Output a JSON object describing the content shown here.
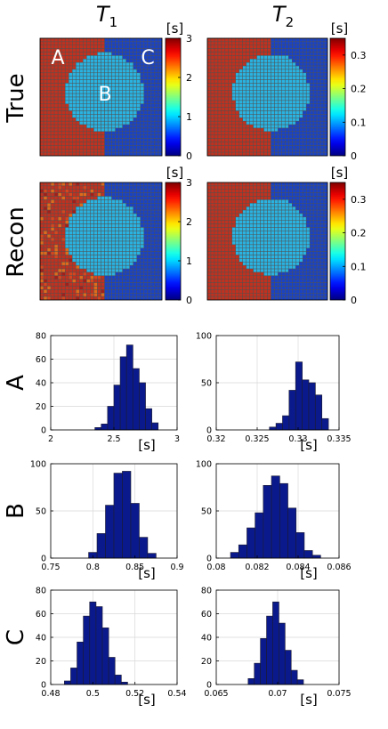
{
  "figure": {
    "column_titles": [
      "T",
      "T"
    ],
    "column_title_subscripts": [
      "1",
      "2"
    ],
    "row_labels": [
      "True",
      "Recon",
      "A",
      "B",
      "C"
    ],
    "map_region_labels": [
      "A",
      "B",
      "C"
    ],
    "colors": {
      "region_A": "#c0311f",
      "region_B": "#2ab2e0",
      "region_C": "#1a43c4",
      "bar_fill": "#0a1a8c",
      "bar_edge": "#1a1a3a",
      "grid_line": "#505050"
    },
    "colorbars": [
      {
        "unit": "[s]",
        "range": [
          0,
          3
        ],
        "ticks": [
          "0",
          "1",
          "2",
          "3"
        ]
      },
      {
        "unit": "[s]",
        "range": [
          0,
          0.35
        ],
        "ticks": [
          "0",
          "0.1",
          "0.2",
          "0.3"
        ]
      },
      {
        "unit": "[s]",
        "range": [
          0,
          3
        ],
        "ticks": [
          "0",
          "1",
          "2",
          "3"
        ]
      },
      {
        "unit": "[s]",
        "range": [
          0,
          0.35
        ],
        "ticks": [
          "0",
          "0.1",
          "0.2",
          "0.3"
        ]
      }
    ]
  },
  "chart_data": [
    {
      "type": "heatmap",
      "panel": "True T1",
      "colormap": "jet",
      "crange": [
        0,
        3
      ],
      "regions": [
        {
          "label": "A",
          "value": 2.6
        },
        {
          "label": "B",
          "value": 1.0
        },
        {
          "label": "C",
          "value": 0.5
        }
      ]
    },
    {
      "type": "heatmap",
      "panel": "True T2",
      "colormap": "jet",
      "crange": [
        0,
        0.35
      ],
      "regions": [
        {
          "label": "A",
          "value": 0.33
        },
        {
          "label": "B",
          "value": 0.083
        },
        {
          "label": "C",
          "value": 0.07
        }
      ]
    },
    {
      "type": "heatmap",
      "panel": "Recon T1",
      "colormap": "jet",
      "crange": [
        0,
        3
      ],
      "regions": [
        {
          "label": "A",
          "value": 2.6
        },
        {
          "label": "B",
          "value": 0.83
        },
        {
          "label": "C",
          "value": 0.5
        }
      ]
    },
    {
      "type": "heatmap",
      "panel": "Recon T2",
      "colormap": "jet",
      "crange": [
        0,
        0.35
      ],
      "regions": [
        {
          "label": "A",
          "value": 0.33
        },
        {
          "label": "B",
          "value": 0.083
        },
        {
          "label": "C",
          "value": 0.07
        }
      ]
    },
    {
      "type": "bar",
      "panel": "A T1",
      "xlim": [
        2,
        3
      ],
      "ylim": [
        0,
        80
      ],
      "xticks": [
        "2",
        "2.5",
        "3"
      ],
      "yticks": [
        "0",
        "20",
        "40",
        "60",
        "80"
      ],
      "xlabel": "[s]",
      "bin_edges": [
        2.35,
        2.4,
        2.45,
        2.5,
        2.55,
        2.6,
        2.65,
        2.7,
        2.75,
        2.8,
        2.85
      ],
      "values": [
        2,
        5,
        20,
        38,
        62,
        72,
        52,
        40,
        18,
        6
      ]
    },
    {
      "type": "bar",
      "panel": "A T2",
      "xlim": [
        0.32,
        0.335
      ],
      "ylim": [
        0,
        100
      ],
      "xticks": [
        "0.32",
        "0.325",
        "0.33",
        "0.335"
      ],
      "yticks": [
        "0",
        "50",
        "100"
      ],
      "xlabel": "[s]",
      "bin_edges": [
        0.3265,
        0.3273,
        0.3281,
        0.3289,
        0.3297,
        0.3305,
        0.3313,
        0.3321,
        0.3329,
        0.3337
      ],
      "values": [
        3,
        7,
        15,
        42,
        72,
        53,
        50,
        37,
        12
      ]
    },
    {
      "type": "bar",
      "panel": "B T1",
      "xlim": [
        0.75,
        0.9
      ],
      "ylim": [
        0,
        100
      ],
      "xticks": [
        "0.75",
        "0.8",
        "0.85",
        "0.9"
      ],
      "yticks": [
        "0",
        "50",
        "100"
      ],
      "xlabel": "[s]",
      "bin_edges": [
        0.795,
        0.805,
        0.815,
        0.825,
        0.835,
        0.845,
        0.855,
        0.865,
        0.875
      ],
      "values": [
        6,
        26,
        56,
        90,
        92,
        58,
        22,
        5
      ]
    },
    {
      "type": "bar",
      "panel": "B T2",
      "xlim": [
        0.08,
        0.086
      ],
      "ylim": [
        0,
        100
      ],
      "xticks": [
        "0.08",
        "0.082",
        "0.084",
        "0.086"
      ],
      "yticks": [
        "0",
        "50",
        "100"
      ],
      "xlabel": "[s]",
      "bin_edges": [
        0.0807,
        0.0811,
        0.0815,
        0.0819,
        0.0823,
        0.0827,
        0.0831,
        0.0835,
        0.0839,
        0.0843,
        0.0847,
        0.0851
      ],
      "values": [
        6,
        14,
        32,
        48,
        77,
        87,
        79,
        53,
        27,
        8,
        3
      ]
    },
    {
      "type": "bar",
      "panel": "C T1",
      "xlim": [
        0.48,
        0.54
      ],
      "ylim": [
        0,
        80
      ],
      "xticks": [
        "0.48",
        "0.5",
        "0.52",
        "0.54"
      ],
      "yticks": [
        "0",
        "20",
        "40",
        "60",
        "80"
      ],
      "xlabel": "[s]",
      "bin_edges": [
        0.4865,
        0.4895,
        0.4925,
        0.4955,
        0.4985,
        0.5015,
        0.5045,
        0.5075,
        0.5105,
        0.5135,
        0.5165
      ],
      "values": [
        3,
        14,
        36,
        58,
        70,
        66,
        48,
        23,
        8,
        2
      ]
    },
    {
      "type": "bar",
      "panel": "C T2",
      "xlim": [
        0.065,
        0.075
      ],
      "ylim": [
        0,
        80
      ],
      "xticks": [
        "0.065",
        "0.07",
        "0.075"
      ],
      "yticks": [
        "0",
        "20",
        "40",
        "60",
        "80"
      ],
      "xlabel": "[s]",
      "bin_edges": [
        0.0676,
        0.0681,
        0.0686,
        0.0691,
        0.0696,
        0.0701,
        0.0706,
        0.0711,
        0.0716,
        0.0721
      ],
      "values": [
        5,
        18,
        39,
        58,
        70,
        52,
        29,
        12,
        4
      ]
    }
  ]
}
